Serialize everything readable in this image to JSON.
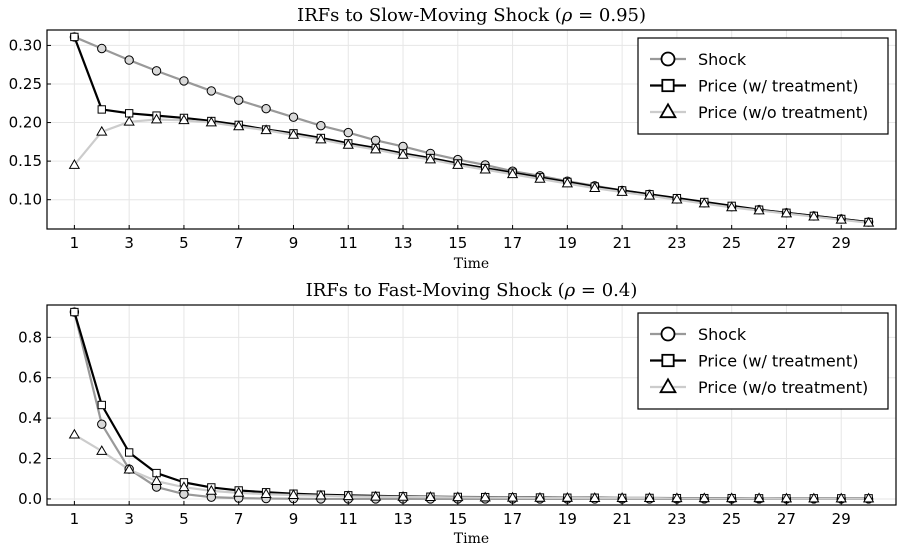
{
  "chart_data": [
    {
      "type": "line",
      "title": "IRFs to Slow-Moving Shock (",
      "title_symbol": "ρ",
      "title_value": " = 0.95)",
      "xlabel": "Time",
      "ylabel": "",
      "xlim": [
        0,
        31
      ],
      "ylim": [
        0.062,
        0.32
      ],
      "xticks": [
        1,
        3,
        5,
        7,
        9,
        11,
        13,
        15,
        17,
        19,
        21,
        23,
        25,
        27,
        29
      ],
      "yticks": [
        0.1,
        0.15,
        0.2,
        0.25,
        0.3
      ],
      "ytick_labels": [
        "0.10",
        "0.15",
        "0.20",
        "0.25",
        "0.30"
      ],
      "grid": true,
      "legend_placement": "top-right",
      "x": [
        1,
        2,
        3,
        4,
        5,
        6,
        7,
        8,
        9,
        10,
        11,
        12,
        13,
        14,
        15,
        16,
        17,
        18,
        19,
        20,
        21,
        22,
        23,
        24,
        25,
        26,
        27,
        28,
        29,
        30
      ],
      "series": [
        {
          "name": "Shock",
          "marker": "circle",
          "color": "#999999",
          "values": [
            0.311,
            0.296,
            0.281,
            0.267,
            0.254,
            0.241,
            0.229,
            0.218,
            0.207,
            0.196,
            0.187,
            0.177,
            0.169,
            0.16,
            0.152,
            0.145,
            0.137,
            0.131,
            0.124,
            0.118,
            0.112,
            0.107,
            0.101,
            0.096,
            0.091,
            0.087,
            0.083,
            0.079,
            0.075,
            0.071
          ]
        },
        {
          "name": "Price (w/ treatment)",
          "marker": "square",
          "color": "#000000",
          "values": [
            0.311,
            0.217,
            0.212,
            0.209,
            0.206,
            0.202,
            0.197,
            0.191,
            0.186,
            0.18,
            0.173,
            0.167,
            0.16,
            0.154,
            0.147,
            0.141,
            0.135,
            0.129,
            0.123,
            0.117,
            0.112,
            0.107,
            0.102,
            0.097,
            0.092,
            0.087,
            0.083,
            0.079,
            0.075,
            0.071
          ]
        },
        {
          "name": "Price (w/o treatment)",
          "marker": "triangle",
          "color": "#cccccc",
          "values": [
            0.145,
            0.188,
            0.201,
            0.204,
            0.203,
            0.2,
            0.195,
            0.19,
            0.184,
            0.178,
            0.171,
            0.165,
            0.158,
            0.152,
            0.145,
            0.139,
            0.133,
            0.127,
            0.121,
            0.115,
            0.11,
            0.105,
            0.1,
            0.095,
            0.09,
            0.086,
            0.082,
            0.078,
            0.074,
            0.07
          ]
        }
      ]
    },
    {
      "type": "line",
      "title": "IRFs to Fast-Moving Shock (",
      "title_symbol": "ρ",
      "title_value": " = 0.4)",
      "xlabel": "Time",
      "ylabel": "",
      "xlim": [
        0,
        31
      ],
      "ylim": [
        -0.03,
        0.96
      ],
      "xticks": [
        1,
        3,
        5,
        7,
        9,
        11,
        13,
        15,
        17,
        19,
        21,
        23,
        25,
        27,
        29
      ],
      "yticks": [
        0.0,
        0.2,
        0.4,
        0.6,
        0.8
      ],
      "ytick_labels": [
        "0.0",
        "0.2",
        "0.4",
        "0.6",
        "0.8"
      ],
      "grid": true,
      "legend_placement": "top-right",
      "x": [
        1,
        2,
        3,
        4,
        5,
        6,
        7,
        8,
        9,
        10,
        11,
        12,
        13,
        14,
        15,
        16,
        17,
        18,
        19,
        20,
        21,
        22,
        23,
        24,
        25,
        26,
        27,
        28,
        29,
        30
      ],
      "series": [
        {
          "name": "Shock",
          "marker": "circle",
          "color": "#999999",
          "values": [
            0.925,
            0.37,
            0.148,
            0.059,
            0.024,
            0.009,
            0.004,
            0.002,
            0.001,
            0.0,
            0.0,
            0.0,
            0.0,
            0.0,
            0.0,
            0.0,
            0.0,
            0.0,
            0.0,
            0.0,
            0.0,
            0.0,
            0.0,
            0.0,
            0.0,
            0.0,
            0.0,
            0.0,
            0.0,
            0.0
          ]
        },
        {
          "name": "Price (w/ treatment)",
          "marker": "square",
          "color": "#000000",
          "values": [
            0.925,
            0.465,
            0.23,
            0.128,
            0.082,
            0.057,
            0.042,
            0.033,
            0.026,
            0.021,
            0.018,
            0.015,
            0.013,
            0.011,
            0.01,
            0.009,
            0.008,
            0.007,
            0.006,
            0.006,
            0.005,
            0.005,
            0.004,
            0.004,
            0.004,
            0.003,
            0.003,
            0.003,
            0.003,
            0.003
          ]
        },
        {
          "name": "Price (w/o treatment)",
          "marker": "triangle",
          "color": "#cccccc",
          "values": [
            0.318,
            0.237,
            0.145,
            0.088,
            0.058,
            0.04,
            0.03,
            0.024,
            0.019,
            0.016,
            0.013,
            0.011,
            0.01,
            0.009,
            0.008,
            0.007,
            0.006,
            0.005,
            0.005,
            0.004,
            0.004,
            0.004,
            0.003,
            0.003,
            0.003,
            0.003,
            0.002,
            0.002,
            0.002,
            0.002
          ]
        }
      ]
    }
  ]
}
